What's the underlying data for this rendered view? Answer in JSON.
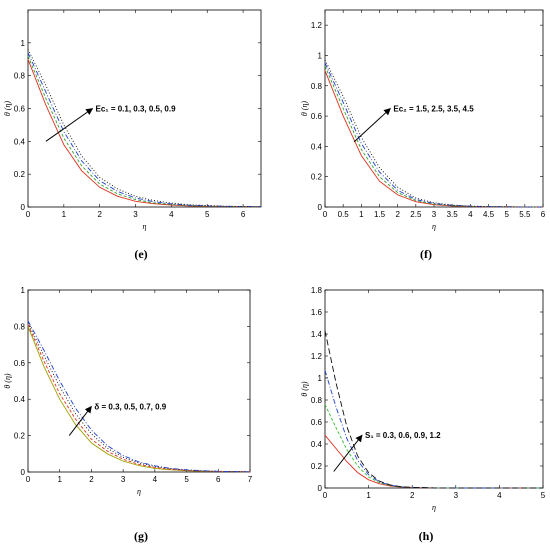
{
  "chart_data": [
    {
      "type": "line",
      "caption": "(e)",
      "xlabel": "η",
      "ylabel": "θ (η)",
      "xlim": [
        0,
        6.5
      ],
      "ylim": [
        0,
        1.2
      ],
      "xticks": [
        "0",
        "1",
        "2",
        "3",
        "4",
        "5",
        "6"
      ],
      "yticks": [
        "0",
        "0.2",
        "0.4",
        "0.6",
        "0.8",
        "1"
      ],
      "annotation": "Ec₁ = 0.1, 0.3, 0.5, 0.9",
      "arrow": {
        "from": [
          0.5,
          0.4
        ],
        "to": [
          1.8,
          0.6
        ]
      },
      "series": [
        {
          "color": "#e03020",
          "dash": "",
          "x": [
            0,
            0.5,
            1,
            1.5,
            2,
            2.5,
            3,
            3.5,
            4,
            4.5,
            5,
            5.5,
            6,
            6.5
          ],
          "values": [
            0.9,
            0.62,
            0.38,
            0.22,
            0.12,
            0.065,
            0.035,
            0.02,
            0.012,
            0.007,
            0.004,
            0.003,
            0.002,
            0.001
          ]
        },
        {
          "color": "#30a030",
          "dash": "3,2",
          "x": [
            0,
            0.5,
            1,
            1.5,
            2,
            2.5,
            3,
            3.5,
            4,
            4.5,
            5,
            5.5,
            6,
            6.5
          ],
          "values": [
            0.92,
            0.66,
            0.42,
            0.25,
            0.14,
            0.08,
            0.045,
            0.025,
            0.015,
            0.009,
            0.005,
            0.003,
            0.002,
            0.001
          ]
        },
        {
          "color": "#2040d0",
          "dash": "5,2,1,2",
          "x": [
            0,
            0.5,
            1,
            1.5,
            2,
            2.5,
            3,
            3.5,
            4,
            4.5,
            5,
            5.5,
            6,
            6.5
          ],
          "values": [
            0.94,
            0.7,
            0.46,
            0.28,
            0.16,
            0.095,
            0.055,
            0.032,
            0.019,
            0.011,
            0.007,
            0.004,
            0.003,
            0.002
          ]
        },
        {
          "color": "#101010",
          "dash": "1,2",
          "x": [
            0,
            0.5,
            1,
            1.5,
            2,
            2.5,
            3,
            3.5,
            4,
            4.5,
            5,
            5.5,
            6,
            6.5
          ],
          "values": [
            0.96,
            0.74,
            0.5,
            0.31,
            0.18,
            0.11,
            0.065,
            0.04,
            0.024,
            0.014,
            0.009,
            0.005,
            0.003,
            0.002
          ]
        }
      ]
    },
    {
      "type": "line",
      "caption": "(f)",
      "xlabel": "η",
      "ylabel": "θ (η)",
      "xlim": [
        0,
        6
      ],
      "ylim": [
        0,
        1.3
      ],
      "xticks": [
        "0",
        "0.5",
        "1",
        "1.5",
        "2",
        "2.5",
        "3",
        "3.5",
        "4",
        "4.5",
        "5",
        "5.5",
        "6"
      ],
      "yticks": [
        "0",
        "0.2",
        "0.4",
        "0.6",
        "0.8",
        "1",
        "1.2"
      ],
      "annotation": "Ec₂ = 1.5, 2.5, 3.5, 4.5",
      "arrow": {
        "from": [
          0.8,
          0.43
        ],
        "to": [
          1.8,
          0.65
        ]
      },
      "series": [
        {
          "color": "#e03020",
          "dash": "",
          "x": [
            0,
            0.5,
            1,
            1.5,
            2,
            2.5,
            3,
            3.5,
            4,
            4.5,
            5,
            5.5,
            6
          ],
          "values": [
            0.9,
            0.6,
            0.34,
            0.17,
            0.08,
            0.035,
            0.015,
            0.007,
            0.003,
            0.001,
            0.001,
            0,
            0
          ]
        },
        {
          "color": "#30a030",
          "dash": "3,2",
          "x": [
            0,
            0.5,
            1,
            1.5,
            2,
            2.5,
            3,
            3.5,
            4,
            4.5,
            5,
            5.5,
            6
          ],
          "values": [
            0.93,
            0.65,
            0.38,
            0.2,
            0.095,
            0.043,
            0.019,
            0.009,
            0.004,
            0.002,
            0.001,
            0,
            0
          ]
        },
        {
          "color": "#2040d0",
          "dash": "5,2,1,2",
          "x": [
            0,
            0.5,
            1,
            1.5,
            2,
            2.5,
            3,
            3.5,
            4,
            4.5,
            5,
            5.5,
            6
          ],
          "values": [
            0.95,
            0.69,
            0.42,
            0.23,
            0.11,
            0.05,
            0.023,
            0.011,
            0.005,
            0.002,
            0.001,
            0,
            0
          ]
        },
        {
          "color": "#101010",
          "dash": "1,2",
          "x": [
            0,
            0.5,
            1,
            1.5,
            2,
            2.5,
            3,
            3.5,
            4,
            4.5,
            5,
            5.5,
            6
          ],
          "values": [
            0.97,
            0.73,
            0.46,
            0.26,
            0.13,
            0.06,
            0.028,
            0.013,
            0.006,
            0.003,
            0.001,
            0,
            0
          ]
        }
      ]
    },
    {
      "type": "line",
      "caption": "(g)",
      "xlabel": "η",
      "ylabel": "θ (η)",
      "xlim": [
        0,
        7
      ],
      "ylim": [
        0,
        1
      ],
      "xticks": [
        "0",
        "1",
        "2",
        "3",
        "4",
        "5",
        "6",
        "7"
      ],
      "yticks": [
        "0",
        "0.2",
        "0.4",
        "0.6",
        "0.8",
        "1"
      ],
      "annotation": "δ = 0.3, 0.5, 0.7, 0.9",
      "arrow": {
        "from": [
          1.3,
          0.2
        ],
        "to": [
          2.0,
          0.36
        ]
      },
      "series": [
        {
          "color": "#a0a000",
          "dash": "",
          "x": [
            0,
            0.5,
            1,
            1.5,
            2,
            2.5,
            3,
            3.5,
            4,
            4.5,
            5,
            5.5,
            6,
            6.5,
            7
          ],
          "values": [
            0.8,
            0.58,
            0.4,
            0.26,
            0.16,
            0.1,
            0.06,
            0.035,
            0.02,
            0.012,
            0.007,
            0.004,
            0.003,
            0.002,
            0.001
          ]
        },
        {
          "color": "#e03020",
          "dash": "3,2",
          "x": [
            0,
            0.5,
            1,
            1.5,
            2,
            2.5,
            3,
            3.5,
            4,
            4.5,
            5,
            5.5,
            6,
            6.5,
            7
          ],
          "values": [
            0.81,
            0.61,
            0.43,
            0.29,
            0.18,
            0.115,
            0.07,
            0.042,
            0.025,
            0.015,
            0.009,
            0.005,
            0.003,
            0.002,
            0.001
          ]
        },
        {
          "color": "#101010",
          "dash": "1,2",
          "x": [
            0,
            0.5,
            1,
            1.5,
            2,
            2.5,
            3,
            3.5,
            4,
            4.5,
            5,
            5.5,
            6,
            6.5,
            7
          ],
          "values": [
            0.82,
            0.64,
            0.47,
            0.32,
            0.21,
            0.13,
            0.08,
            0.05,
            0.03,
            0.018,
            0.011,
            0.006,
            0.004,
            0.002,
            0.001
          ]
        },
        {
          "color": "#2040d0",
          "dash": "5,2,1,2",
          "x": [
            0,
            0.5,
            1,
            1.5,
            2,
            2.5,
            3,
            3.5,
            4,
            4.5,
            5,
            5.5,
            6,
            6.5,
            7
          ],
          "values": [
            0.83,
            0.67,
            0.5,
            0.35,
            0.23,
            0.145,
            0.09,
            0.055,
            0.034,
            0.02,
            0.012,
            0.007,
            0.004,
            0.002,
            0.001
          ]
        }
      ]
    },
    {
      "type": "line",
      "caption": "(h)",
      "xlabel": "η",
      "ylabel": "θ (η)",
      "xlim": [
        0,
        5
      ],
      "ylim": [
        0,
        1.8
      ],
      "xticks": [
        "0",
        "1",
        "2",
        "3",
        "4",
        "5"
      ],
      "yticks": [
        "0",
        "0.2",
        "0.4",
        "0.6",
        "0.8",
        "1",
        "1.2",
        "1.4",
        "1.6",
        "1.8"
      ],
      "annotation": "S₁ = 0.3, 0.6, 0.9, 1.2",
      "arrow": {
        "from": [
          0.2,
          0.15
        ],
        "to": [
          0.85,
          0.48
        ]
      },
      "series": [
        {
          "color": "#e03020",
          "dash": "",
          "x": [
            0,
            0.25,
            0.5,
            0.75,
            1,
            1.25,
            1.5,
            1.75,
            2,
            2.5,
            3,
            3.5,
            4,
            4.5,
            5
          ],
          "values": [
            0.48,
            0.36,
            0.24,
            0.14,
            0.075,
            0.038,
            0.018,
            0.009,
            0.004,
            0.001,
            0,
            0,
            0,
            0,
            0
          ]
        },
        {
          "color": "#30c030",
          "dash": "3,2",
          "x": [
            0,
            0.25,
            0.5,
            0.75,
            1,
            1.25,
            1.5,
            1.75,
            2,
            2.5,
            3,
            3.5,
            4,
            4.5,
            5
          ],
          "values": [
            0.76,
            0.55,
            0.35,
            0.2,
            0.1,
            0.048,
            0.022,
            0.01,
            0.005,
            0.001,
            0,
            0,
            0,
            0,
            0
          ]
        },
        {
          "color": "#2040d0",
          "dash": "5,2,1,2",
          "x": [
            0,
            0.25,
            0.5,
            0.75,
            1,
            1.25,
            1.5,
            1.75,
            2,
            2.5,
            3,
            3.5,
            4,
            4.5,
            5
          ],
          "values": [
            1.07,
            0.74,
            0.45,
            0.25,
            0.12,
            0.055,
            0.025,
            0.011,
            0.005,
            0.001,
            0,
            0,
            0,
            0,
            0
          ]
        },
        {
          "color": "#101010",
          "dash": "6,3",
          "x": [
            0,
            0.25,
            0.5,
            0.75,
            1,
            1.25,
            1.5,
            1.75,
            2,
            2.5,
            3,
            3.5,
            4,
            4.5,
            5
          ],
          "values": [
            1.43,
            0.96,
            0.56,
            0.29,
            0.14,
            0.062,
            0.027,
            0.012,
            0.005,
            0.001,
            0,
            0,
            0,
            0,
            0
          ]
        }
      ]
    }
  ]
}
